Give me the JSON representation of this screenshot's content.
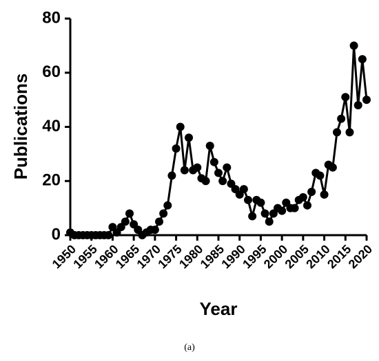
{
  "chart_data": {
    "type": "line",
    "x": [
      1950,
      1951,
      1952,
      1953,
      1954,
      1955,
      1956,
      1957,
      1958,
      1959,
      1960,
      1961,
      1962,
      1963,
      1964,
      1965,
      1966,
      1967,
      1968,
      1969,
      1970,
      1971,
      1972,
      1973,
      1974,
      1975,
      1976,
      1977,
      1978,
      1979,
      1980,
      1981,
      1982,
      1983,
      1984,
      1985,
      1986,
      1987,
      1988,
      1989,
      1990,
      1991,
      1992,
      1993,
      1994,
      1995,
      1996,
      1997,
      1998,
      1999,
      2000,
      2001,
      2002,
      2003,
      2004,
      2005,
      2006,
      2007,
      2008,
      2009,
      2010,
      2011,
      2012,
      2013,
      2014,
      2015,
      2016,
      2017,
      2018,
      2019,
      2020
    ],
    "series": [
      {
        "color": "#000000",
        "values": [
          1,
          0,
          0,
          0,
          0,
          0,
          0,
          0,
          0,
          0,
          3,
          1,
          3,
          5,
          8,
          4,
          2,
          0,
          1,
          2,
          2,
          5,
          8,
          11,
          22,
          32,
          40,
          24,
          36,
          24,
          25,
          21,
          20,
          33,
          27,
          23,
          20,
          25,
          19,
          17,
          15,
          17,
          13,
          7,
          13,
          12,
          8,
          5,
          8,
          10,
          9,
          12,
          10,
          10,
          13,
          14,
          11,
          16,
          23,
          22,
          15,
          26,
          25,
          38,
          43,
          51,
          38,
          70,
          48,
          65,
          50
        ]
      }
    ],
    "xlabel": "Year",
    "ylabel": "Publications",
    "xlim": [
      1950,
      2020
    ],
    "xticks": [
      1950,
      1955,
      1960,
      1965,
      1970,
      1975,
      1980,
      1985,
      1990,
      1995,
      2000,
      2005,
      2010,
      2015,
      2020
    ],
    "ylim": [
      0,
      80
    ],
    "yticks": [
      0,
      20,
      40,
      60,
      80
    ],
    "caption": "(a)"
  }
}
